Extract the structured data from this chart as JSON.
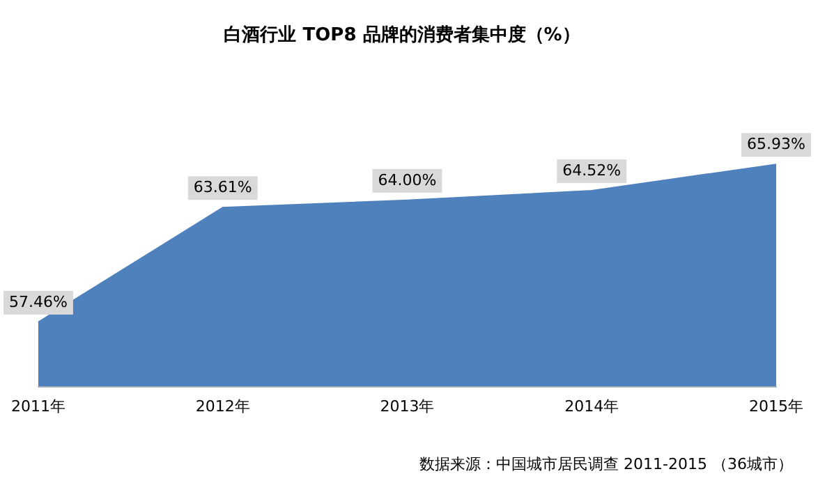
{
  "chart_data": {
    "type": "area",
    "title": "白酒行业 TOP8 品牌的消费者集中度（%）",
    "categories": [
      "2011年",
      "2012年",
      "2013年",
      "2014年",
      "2015年"
    ],
    "values": [
      57.46,
      63.61,
      64.0,
      64.52,
      65.93
    ],
    "value_labels": [
      "57.46%",
      "63.61%",
      "64.00%",
      "64.52%",
      "65.93%"
    ],
    "color": "#4f81bd",
    "grid": false,
    "legend": false,
    "annotations": [
      "数据来源：中国城市居民调查 2011-2015 （36城市）"
    ]
  }
}
